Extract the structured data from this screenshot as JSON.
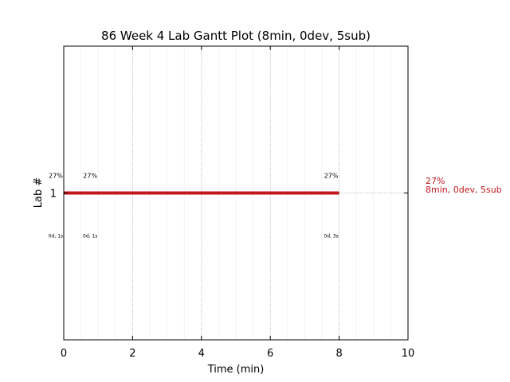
{
  "chart_data": {
    "type": "gantt",
    "title": "86 Week 4 Lab Gantt Plot (8min, 0dev, 5sub)",
    "xlabel": "Time (min)",
    "ylabel": "Lab #",
    "xlim": [
      0,
      10
    ],
    "ylim": [
      0,
      2
    ],
    "xticks": [
      0,
      2,
      4,
      6,
      8,
      10
    ],
    "xtick_labels": [
      "0",
      "2",
      "4",
      "6",
      "8",
      "10"
    ],
    "yticks": [
      1
    ],
    "ytick_labels": [
      "1"
    ],
    "grid": true,
    "bar_color": "#c0171d",
    "bars": [
      {
        "lab": 1,
        "start": 0,
        "end": 8
      }
    ],
    "submissions": [
      {
        "x": 0,
        "pct": "27%",
        "dev": "0d, 1s"
      },
      {
        "x": 1,
        "pct": "27%",
        "dev": "0d, 1s"
      },
      {
        "x": 8,
        "pct": "27%",
        "dev": "0d, 3s"
      }
    ],
    "side_label": {
      "line1": "27%",
      "line2": "8min, 0dev, 5sub"
    }
  }
}
